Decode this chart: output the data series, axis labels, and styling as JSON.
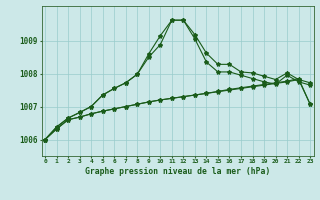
{
  "x": [
    0,
    1,
    2,
    3,
    4,
    5,
    6,
    7,
    8,
    9,
    10,
    11,
    12,
    13,
    14,
    15,
    16,
    17,
    18,
    19,
    20,
    21,
    22,
    23
  ],
  "peak1": [
    1006.0,
    1006.38,
    1006.65,
    1006.82,
    1007.0,
    1007.35,
    1007.55,
    1007.72,
    1007.98,
    1008.6,
    1009.15,
    1009.62,
    1009.62,
    1009.18,
    1008.62,
    1008.28,
    1008.28,
    1008.05,
    1008.02,
    1007.92,
    1007.82,
    1008.02,
    1007.82,
    1007.72
  ],
  "peak2": [
    1006.0,
    1006.38,
    1006.65,
    1006.82,
    1007.0,
    1007.35,
    1007.55,
    1007.72,
    1007.98,
    1008.5,
    1008.88,
    1009.62,
    1009.62,
    1009.05,
    1008.35,
    1008.05,
    1008.05,
    1007.95,
    1007.85,
    1007.75,
    1007.68,
    1007.95,
    1007.75,
    1007.65
  ],
  "slow1": [
    1006.0,
    1006.32,
    1006.6,
    1006.68,
    1006.78,
    1006.86,
    1006.93,
    1007.0,
    1007.07,
    1007.14,
    1007.2,
    1007.25,
    1007.3,
    1007.35,
    1007.4,
    1007.45,
    1007.5,
    1007.55,
    1007.6,
    1007.65,
    1007.7,
    1007.75,
    1007.82,
    1007.07
  ],
  "slow2": [
    1006.0,
    1006.32,
    1006.6,
    1006.68,
    1006.78,
    1006.86,
    1006.93,
    1007.0,
    1007.07,
    1007.14,
    1007.2,
    1007.25,
    1007.3,
    1007.35,
    1007.4,
    1007.46,
    1007.52,
    1007.57,
    1007.62,
    1007.67,
    1007.72,
    1007.77,
    1007.85,
    1007.07
  ],
  "bg_color": "#cce8e8",
  "grid_color": "#99cccc",
  "line_color": "#1a5c1a",
  "ylabel_values": [
    1006,
    1007,
    1008,
    1009
  ],
  "xlabel": "Graphe pression niveau de la mer (hPa)",
  "ylim_min": 1005.5,
  "ylim_max": 1010.05
}
